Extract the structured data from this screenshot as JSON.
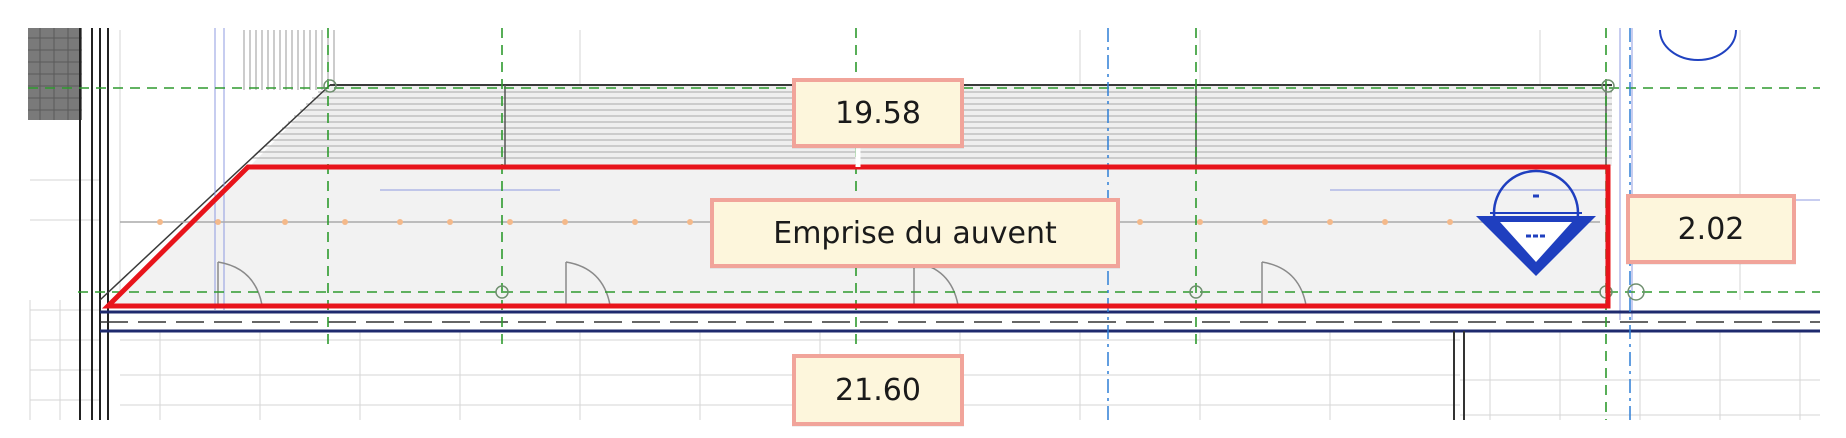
{
  "labels": {
    "top_dimension": "19.58",
    "area_label": "Emprise du auvent",
    "side_dimension": "2.02",
    "bottom_dimension": "21.60"
  },
  "colors": {
    "outline": "#e8141b",
    "label_border": "#f1a49a",
    "label_fill": "#fdf6dc",
    "grid_dashed": "#2e9a2e",
    "section_blue": "#1f3fbf",
    "axis_blue": "#2f7fd6",
    "wall_dark": "#4a4a4a"
  },
  "icons": {
    "section_marker": "section-marker-icon"
  }
}
